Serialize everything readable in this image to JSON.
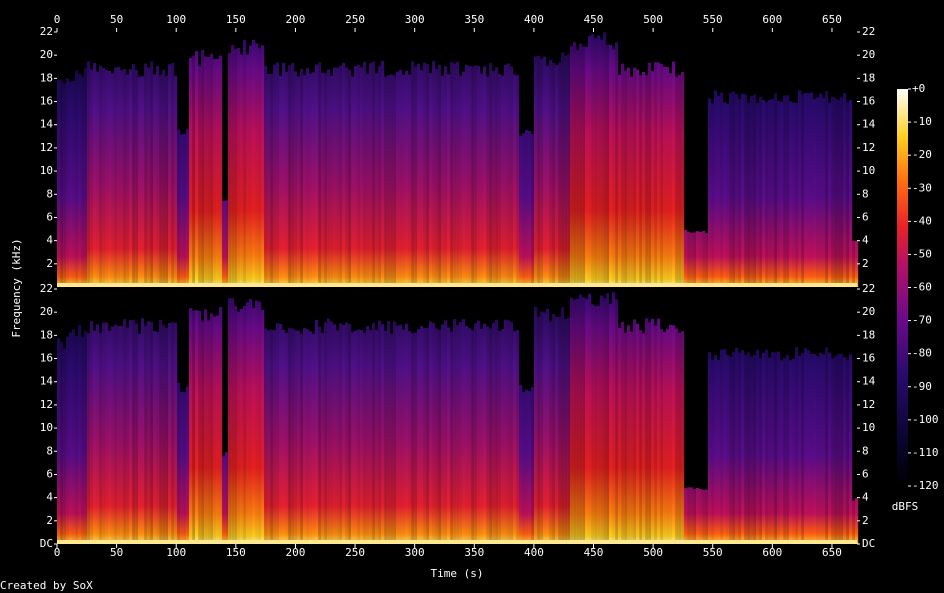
{
  "chart_data": {
    "type": "spectrogram",
    "xlabel": "Time (s)",
    "ylabel": "Frequency (kHz)",
    "xlim": [
      0,
      671
    ],
    "xticks": [
      0,
      50,
      100,
      150,
      200,
      250,
      300,
      350,
      400,
      450,
      500,
      550,
      600,
      650
    ],
    "ylim": [
      0,
      22
    ],
    "panels": [
      {
        "yticks": [
          2,
          4,
          6,
          8,
          10,
          12,
          14,
          16,
          18,
          20,
          22
        ]
      },
      {
        "yticks": [
          {
            "value": 0,
            "label": "DC"
          },
          2,
          4,
          6,
          8,
          10,
          12,
          14,
          16,
          18,
          20,
          22
        ]
      }
    ],
    "colorbar_label": "dBFS",
    "clim": [
      -120,
      0
    ],
    "cticks": [
      {
        "value": 0,
        "label": "+0"
      },
      -10,
      -20,
      -30,
      -40,
      -50,
      -60,
      -70,
      -80,
      -90,
      -100,
      -110,
      -120
    ],
    "credit": "Created by SoX"
  }
}
